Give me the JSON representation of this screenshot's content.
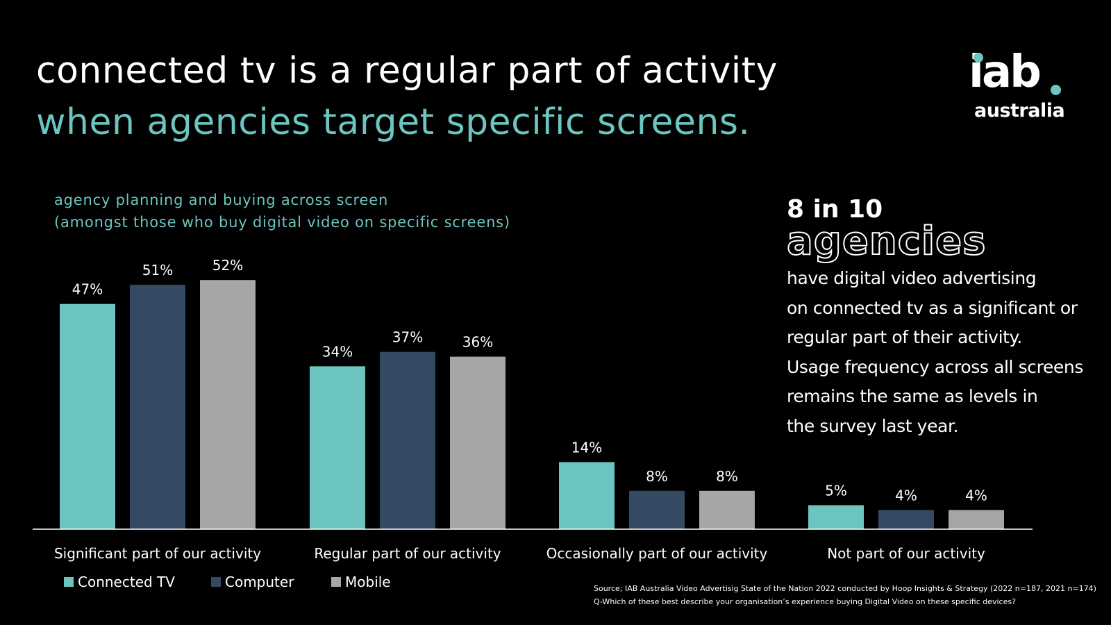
{
  "header": {
    "title_line1": "connected tv is a regular part of activity",
    "title_line2": "when agencies target specific screens."
  },
  "logo": {
    "brand": "iab",
    "region": "australia"
  },
  "colors": {
    "accent": "#6cc5c0",
    "connected_tv": "#6cc5c0",
    "computer": "#344a63",
    "mobile": "#a6a6a6",
    "background": "#000000"
  },
  "subtitle": {
    "line1": "agency planning and buying across screen",
    "line2": "(amongst those who buy digital video on specific screens)"
  },
  "callout": {
    "stat": "8 in 10",
    "big": "agencies",
    "lines": [
      "have digital video advertising",
      "on connected tv as a significant or",
      "regular part of their activity.",
      "Usage frequency across all screens",
      "remains the same as levels in",
      "the survey last year."
    ]
  },
  "chart_data": {
    "type": "bar",
    "title": "agency planning and buying across screen",
    "categories": [
      "Significant part of our activity",
      "Regular part of our activity",
      "Occasionally part of our activity",
      "Not part of our activity"
    ],
    "series": [
      {
        "name": "Connected TV",
        "color": "#6cc5c0",
        "values": [
          47,
          34,
          14,
          5
        ]
      },
      {
        "name": "Computer",
        "color": "#344a63",
        "values": [
          51,
          37,
          8,
          4
        ]
      },
      {
        "name": "Mobile",
        "color": "#a6a6a6",
        "values": [
          52,
          36,
          8,
          4
        ]
      }
    ],
    "unit": "%",
    "ylim": [
      0,
      60
    ],
    "grid": false,
    "legend": "bottom-left"
  },
  "source": {
    "line1": "Source; IAB Australia Video Advertisig State of the Nation 2022 conducted by Hoop Insights & Strategy (2022 n=187, 2021 n=174)",
    "line2": "Q-Which of these best describe your organisation’s experience buying Digital Video on these specific devices?"
  }
}
